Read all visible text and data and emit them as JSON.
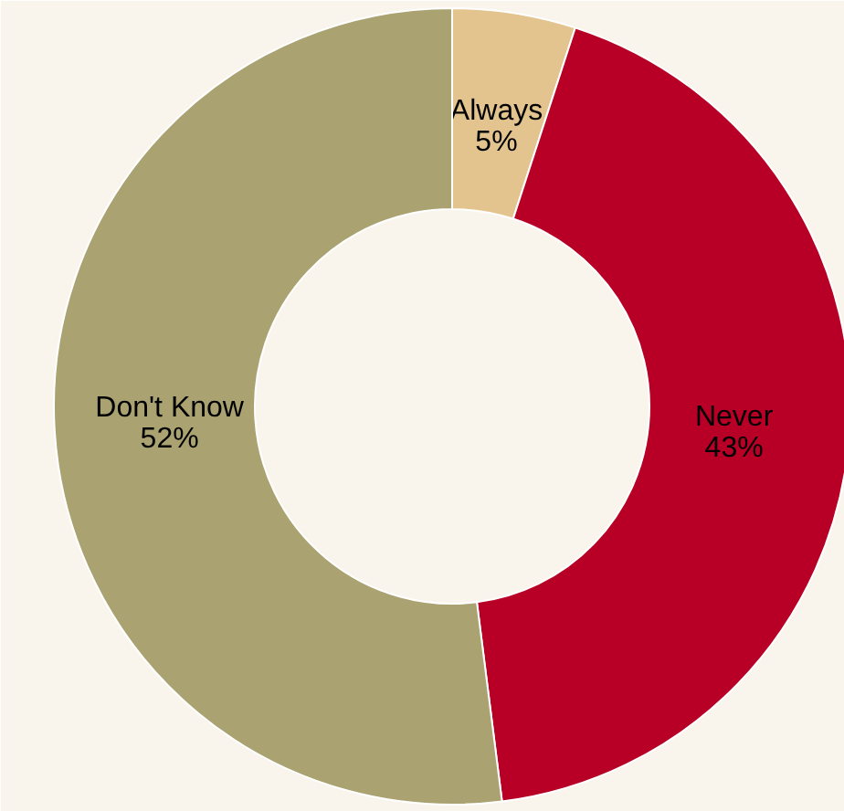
{
  "chart_data": {
    "type": "donut",
    "categories": [
      "Always",
      "Never",
      "Don't Know"
    ],
    "values": [
      5,
      43,
      52
    ],
    "colors": [
      "#e3c38e",
      "#b80026",
      "#aaa270"
    ],
    "value_labels": [
      "5%",
      "43%",
      "52%"
    ],
    "legend": false
  }
}
